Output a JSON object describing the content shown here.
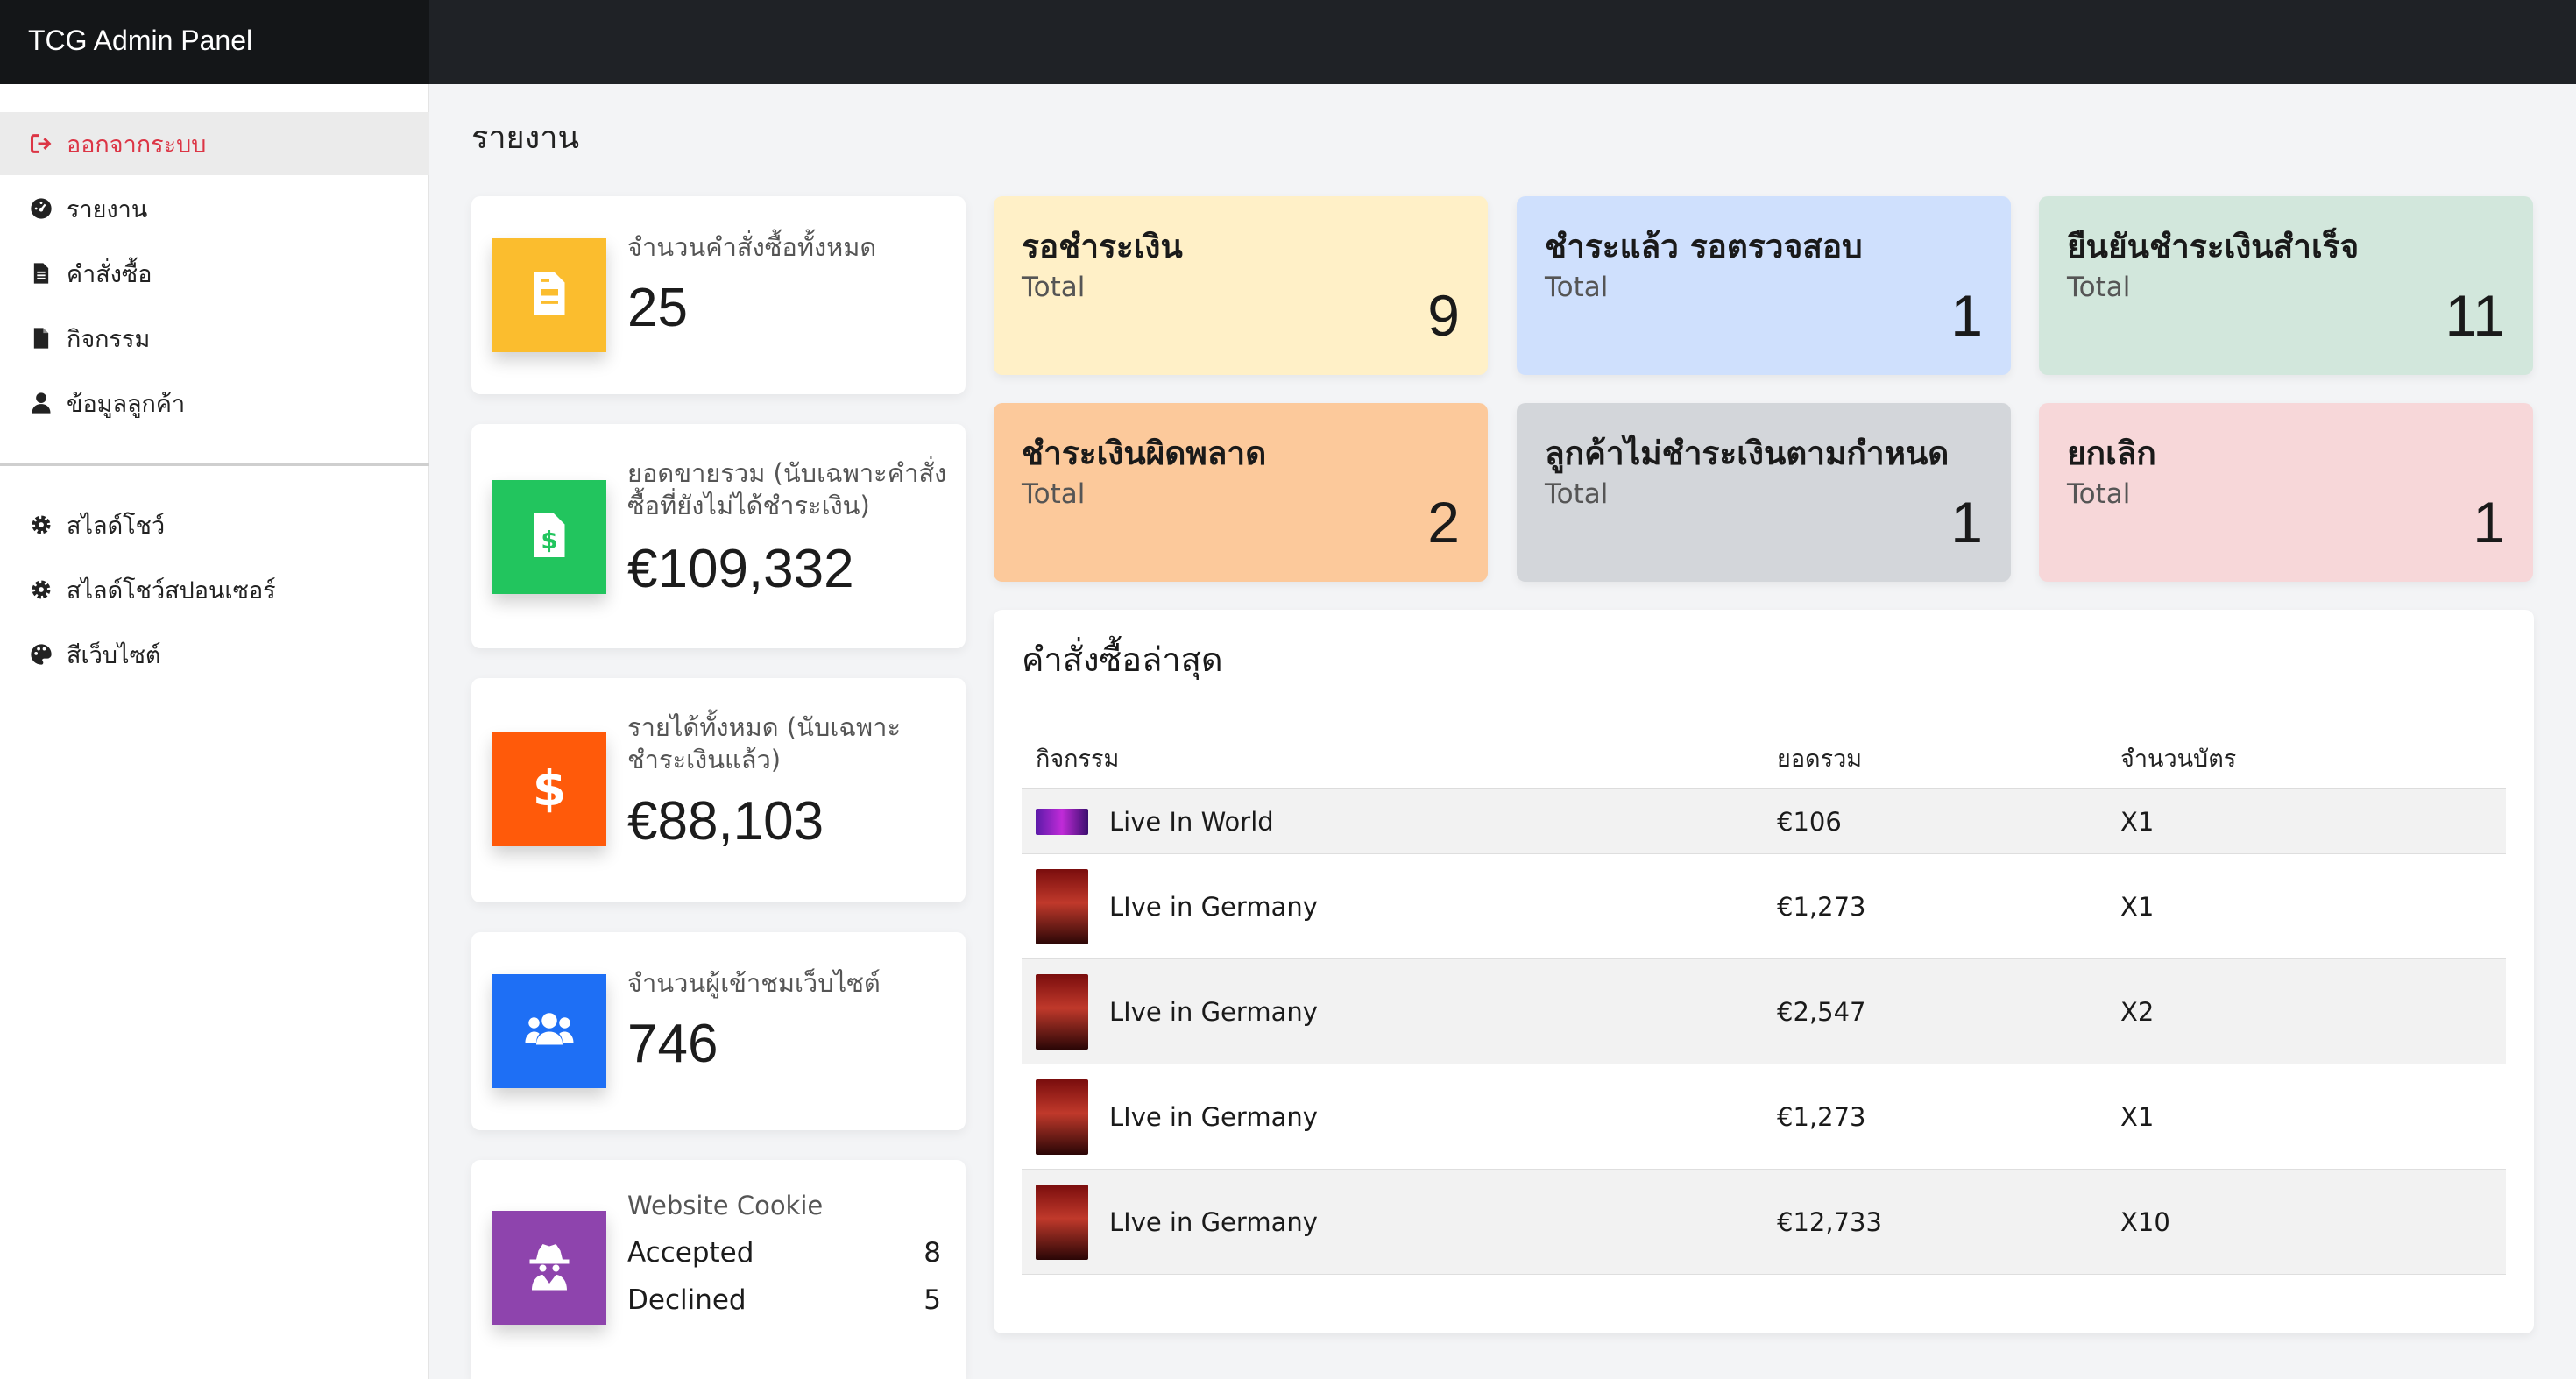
{
  "app": {
    "title": "TCG Admin Panel"
  },
  "sidebar": {
    "items": [
      {
        "label": "ออกจากระบบ",
        "icon": "sign-out-icon"
      },
      {
        "label": "รายงาน",
        "icon": "dashboard-icon"
      },
      {
        "label": "คำสั่งซื้อ",
        "icon": "file-icon"
      },
      {
        "label": "กิจกรรม",
        "icon": "file-icon"
      },
      {
        "label": "ข้อมูลลูกค้า",
        "icon": "user-icon"
      },
      {
        "label": "สไลด์โชว์",
        "icon": "gear-icon"
      },
      {
        "label": "สไลด์โชว์สปอนเซอร์",
        "icon": "gear-icon"
      },
      {
        "label": "สีเว็บไซต์",
        "icon": "palette-icon"
      }
    ]
  },
  "page": {
    "title": "รายงาน"
  },
  "stats": {
    "orders": {
      "label": "จำนวนคำสั่งซื้อทั้งหมด",
      "value": "25",
      "color": "#fbbd2e"
    },
    "sales": {
      "label": "ยอดขายรวม (นับเฉพาะคำสั่งซื้อที่ยังไม่ได้ชำระเงิน)",
      "value": "€109,332",
      "color": "#22c55e"
    },
    "income": {
      "label": "รายได้ทั้งหมด (นับเฉพาะชำระเงินแล้ว)",
      "value": "€88,103",
      "color": "#ff5a0a"
    },
    "visitors": {
      "label": "จำนวนผู้เข้าชมเว็บไซต์",
      "value": "746",
      "color": "#1e6ff5"
    },
    "cookie": {
      "label": "Website Cookie",
      "accepted_label": "Accepted",
      "accepted": "8",
      "declined_label": "Declined",
      "declined": "5",
      "color": "#8e44ad"
    }
  },
  "statuses": [
    {
      "title": "รอชำระเงิน",
      "sub": "Total",
      "value": "9",
      "color": "#fff0c7"
    },
    {
      "title": "ชำระแล้ว รอตรวจสอบ",
      "sub": "Total",
      "value": "1",
      "color": "#cfe0fd"
    },
    {
      "title": "ยืนยันชำระเงินสำเร็จ",
      "sub": "Total",
      "value": "11",
      "color": "#d2e7dc"
    },
    {
      "title": "ชำระเงินผิดพลาด",
      "sub": "Total",
      "value": "2",
      "color": "#fcc99b"
    },
    {
      "title": "ลูกค้าไม่ชำระเงินตามกำหนด",
      "sub": "Total",
      "value": "1",
      "color": "#d3d6da"
    },
    {
      "title": "ยกเลิก",
      "sub": "Total",
      "value": "1",
      "color": "#f7d7d9"
    }
  ],
  "orders": {
    "title": "คำสั่งซื้อล่าสุด",
    "headers": [
      "กิจกรรม",
      "ยอดรวม",
      "จำนวนบัตร"
    ],
    "rows": [
      {
        "event": "Live In World",
        "total": "€106",
        "qty": "X1"
      },
      {
        "event": "LIve in Germany",
        "total": "€1,273",
        "qty": "X1"
      },
      {
        "event": "LIve in Germany",
        "total": "€2,547",
        "qty": "X2"
      },
      {
        "event": "LIve in Germany",
        "total": "€1,273",
        "qty": "X1"
      },
      {
        "event": "LIve in Germany",
        "total": "€12,733",
        "qty": "X10"
      }
    ]
  }
}
